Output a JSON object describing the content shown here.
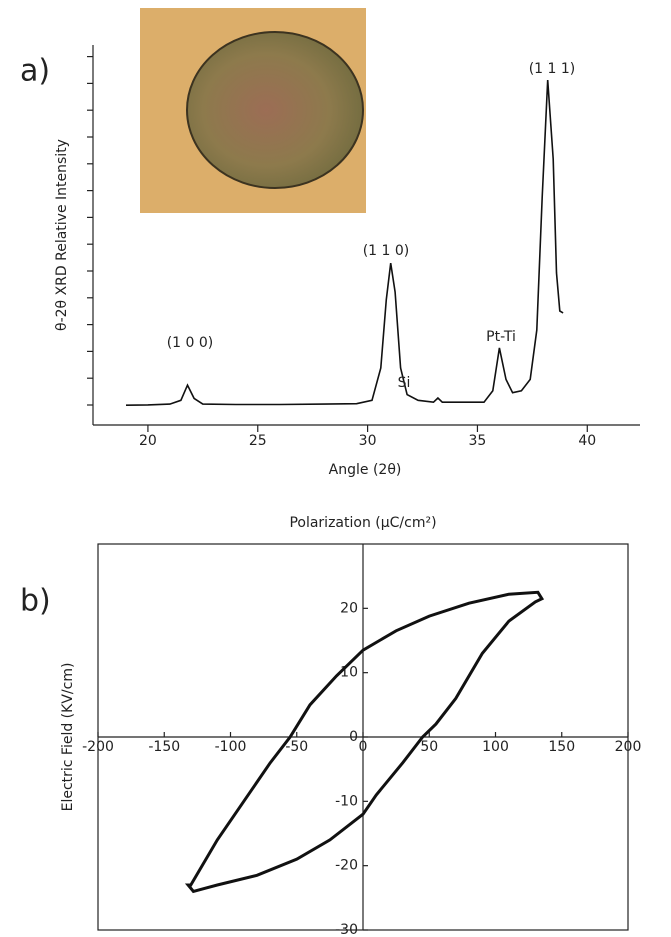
{
  "chart_data": [
    {
      "type": "line",
      "panel": "a)",
      "xlabel": "Angle (2θ)",
      "ylabel": "θ-2θ XRD Relative Intensity",
      "x": [
        19.0,
        20,
        21,
        21.5,
        21.8,
        22.1,
        22.5,
        24,
        26,
        28,
        29.5,
        30.2,
        30.6,
        30.85,
        31.05,
        31.25,
        31.5,
        31.8,
        32.3,
        33,
        33.2,
        33.4,
        34,
        35.3,
        35.7,
        36.0,
        36.3,
        36.6,
        37.0,
        37.4,
        37.7,
        37.95,
        38.2,
        38.45,
        38.6,
        38.75,
        38.9
      ],
      "values": [
        5.2,
        5.3,
        5.5,
        6.5,
        10.5,
        7,
        5.5,
        5.4,
        5.4,
        5.5,
        5.6,
        6.5,
        15,
        33,
        42.6,
        35,
        15,
        8,
        6.5,
        6.0,
        7.1,
        6.0,
        6.0,
        6.0,
        9,
        20.3,
        12,
        8.5,
        9,
        12,
        25,
        60,
        90.8,
        70,
        40,
        30,
        29.5
      ],
      "color": "#111111",
      "annotations": [
        "(1 0 0)",
        "(1 1 0)",
        "Si",
        "Pt-Ti",
        "(1 1 1)"
      ],
      "xlim": [
        17.5,
        42.4
      ],
      "xticks": [
        20,
        25,
        30,
        35,
        40
      ],
      "ylim": [
        0,
        100
      ]
    },
    {
      "type": "loop",
      "panel": "b)",
      "title": "Polarization (μC/cm²)",
      "ylabel": "Electric Field (KV/cm)",
      "x": [
        -130,
        -110,
        -90,
        -70,
        -55,
        -40,
        -20,
        0,
        25,
        50,
        80,
        110,
        132,
        135,
        130,
        110,
        90,
        70,
        55,
        45,
        30,
        10,
        0,
        -25,
        -50,
        -80,
        -110,
        -128,
        -132
      ],
      "values": [
        -23,
        -16,
        -10,
        -4,
        0,
        5,
        9.5,
        13.5,
        16.5,
        18.8,
        20.8,
        22.2,
        22.5,
        21.5,
        21,
        18,
        13,
        6,
        2,
        0,
        -4,
        -9,
        -12,
        -16,
        -19,
        -21.5,
        -23,
        -24,
        -23
      ],
      "color": "#111111",
      "xlim": [
        -200,
        200
      ],
      "xticks": [
        -200,
        -150,
        -100,
        -50,
        0,
        50,
        100,
        150,
        200
      ],
      "ylim": [
        -30,
        30
      ],
      "yticks": [
        -30,
        -20,
        -10,
        0,
        10,
        20
      ]
    }
  ]
}
